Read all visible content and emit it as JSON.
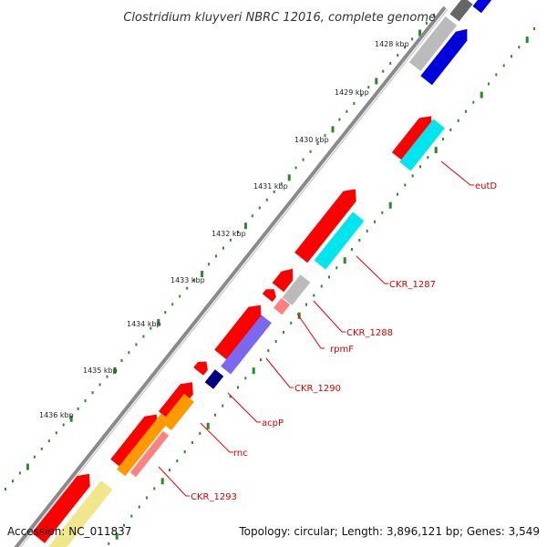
{
  "title": "Clostridium kluyveri NBRC 12016, complete genome",
  "footer": {
    "accession": "Accession: NC_011837",
    "stats": "Topology: circular; Length: 3,896,121 bp; Genes: 3,549"
  },
  "kbp_labels": [
    "1428 kbp",
    "1429 kbp",
    "1430 kbp",
    "1431 kbp",
    "1432 kbp",
    "1433 kbp",
    "1434 kbp",
    "1435 kbp",
    "1436 kbp"
  ],
  "gene_labels": [
    "eutD",
    "CKR_1287",
    "CKR_1288",
    "rpmF",
    "CKR_1290",
    "acpP",
    "rnc",
    "CKR_1293"
  ],
  "colors": {
    "forward_gene": "#ff0000",
    "backbone": "#888888",
    "tick": "#2a8a2a",
    "label": "#d40000",
    "cyan": "#00e5ee",
    "blue": "#0000dd",
    "grey": "#bbbbbb",
    "purple": "#7b68ee",
    "navy": "#000080",
    "orange": "#ff9900",
    "salmon": "#ff8080",
    "khaki": "#f0e68c"
  }
}
